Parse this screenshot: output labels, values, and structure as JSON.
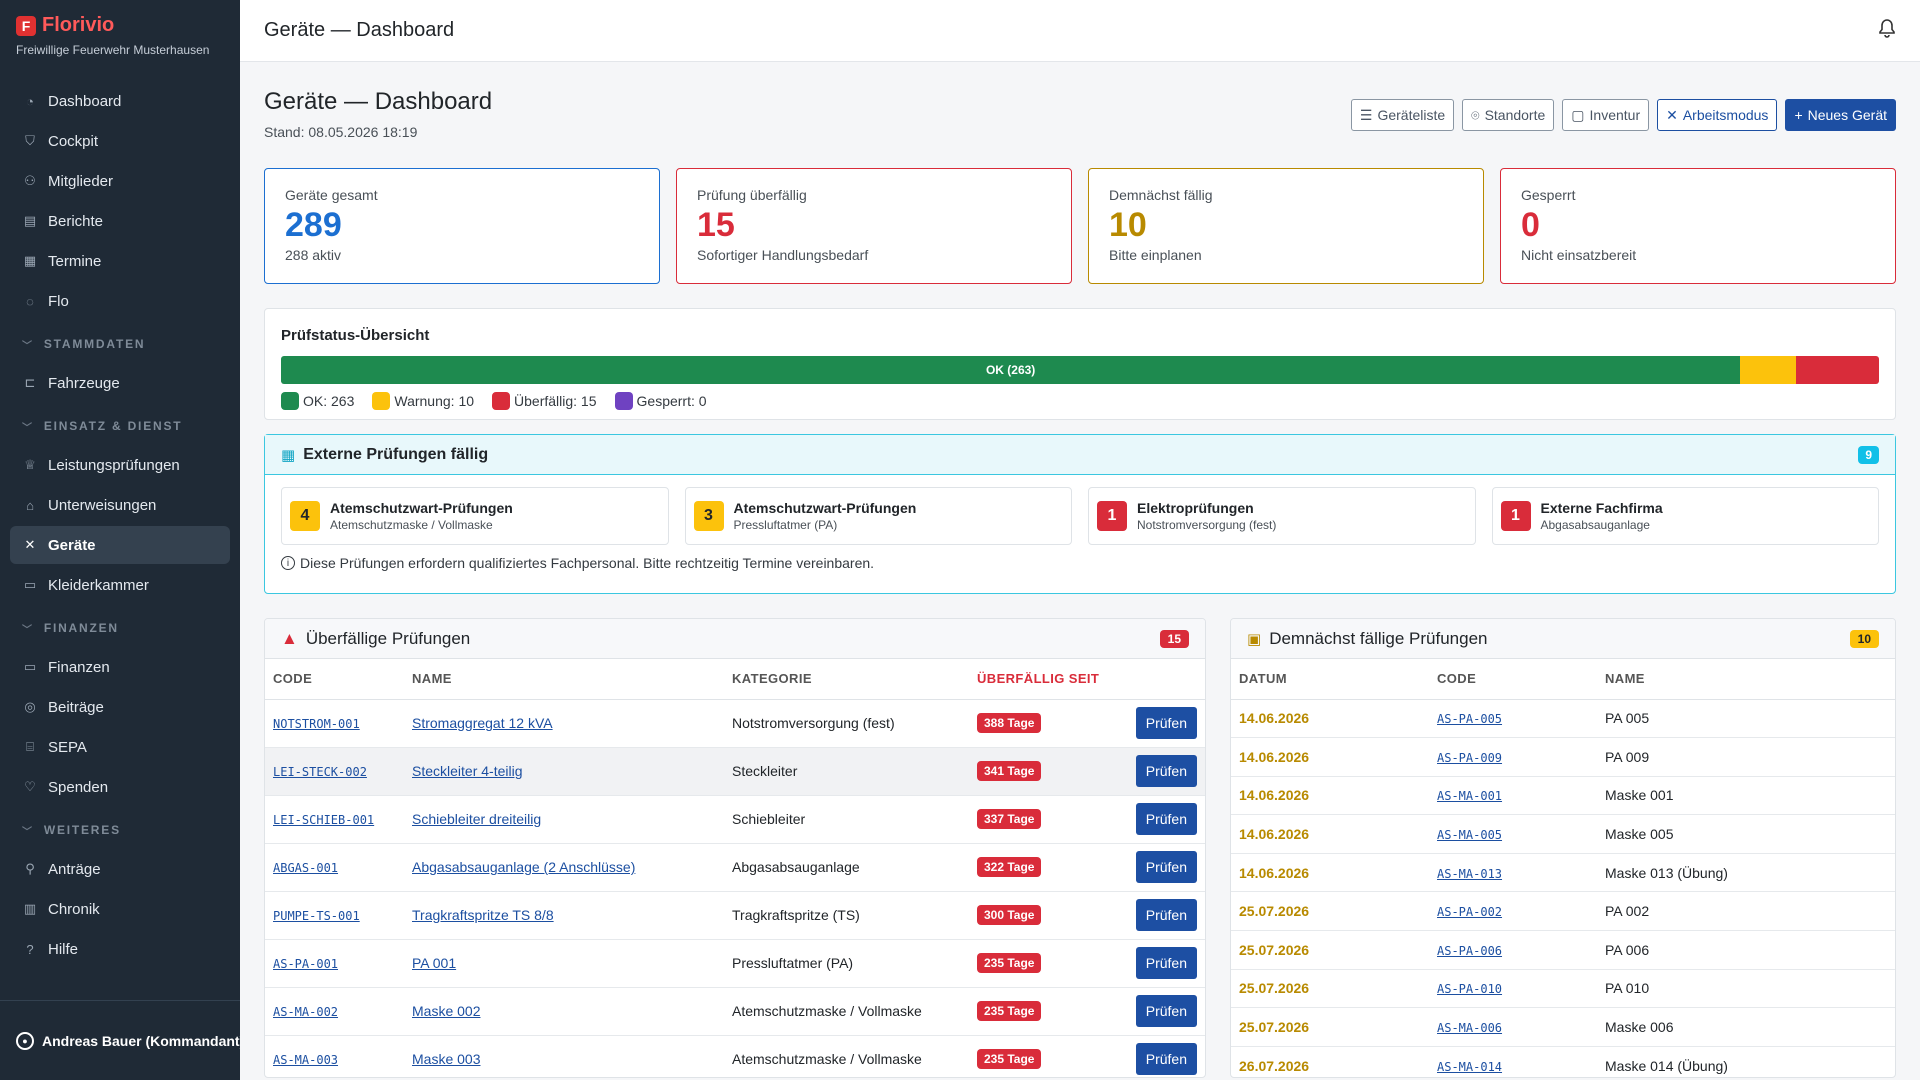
{
  "brand": {
    "name": "Florivio",
    "logo_letter": "F",
    "subtitle": "Freiwillige Feuerwehr Musterhausen"
  },
  "sidebar": {
    "items_top": [
      {
        "label": "Dashboard",
        "icon": "speedometer-icon"
      },
      {
        "label": "Cockpit",
        "icon": "shield-icon"
      },
      {
        "label": "Mitglieder",
        "icon": "people-icon"
      },
      {
        "label": "Berichte",
        "icon": "document-icon"
      },
      {
        "label": "Termine",
        "icon": "calendar-icon"
      },
      {
        "label": "Flo",
        "icon": "chat-icon"
      }
    ],
    "sections": [
      {
        "title": "STAMMDATEN",
        "items": [
          {
            "label": "Fahrzeuge",
            "icon": "truck-icon"
          }
        ]
      },
      {
        "title": "EINSATZ & DIENST",
        "items": [
          {
            "label": "Leistungsprüfungen",
            "icon": "trophy-icon"
          },
          {
            "label": "Unterweisungen",
            "icon": "mortarboard-icon"
          },
          {
            "label": "Geräte",
            "icon": "tools-icon",
            "active": true
          },
          {
            "label": "Kleiderkammer",
            "icon": "box-icon"
          }
        ]
      },
      {
        "title": "FINANZEN",
        "items": [
          {
            "label": "Finanzen",
            "icon": "wallet-icon"
          },
          {
            "label": "Beiträge",
            "icon": "coins-icon"
          },
          {
            "label": "SEPA",
            "icon": "bank-icon"
          },
          {
            "label": "Spenden",
            "icon": "heart-icon"
          }
        ]
      },
      {
        "title": "WEITERES",
        "items": [
          {
            "label": "Anträge",
            "icon": "person-check-icon"
          },
          {
            "label": "Chronik",
            "icon": "journal-icon"
          },
          {
            "label": "Hilfe",
            "icon": "question-icon"
          }
        ]
      }
    ],
    "user": "Andreas Bauer (Kommandant)"
  },
  "topbar": {
    "title": "Geräte — Dashboard"
  },
  "page": {
    "title": "Geräte — Dashboard",
    "subtitle": "Stand: 08.05.2026 18:19",
    "actions": {
      "list": "Geräteliste",
      "locations": "Standorte",
      "inventory": "Inventur",
      "workmode": "Arbeitsmodus",
      "new": "Neues Gerät"
    }
  },
  "stats": [
    {
      "label": "Geräte gesamt",
      "value": "289",
      "hint": "288 aktiv",
      "color": "#1c6fd1"
    },
    {
      "label": "Prüfung überfällig",
      "value": "15",
      "hint": "Sofortiger Handlungsbedarf",
      "color": "#d92c3a"
    },
    {
      "label": "Demnächst fällig",
      "value": "10",
      "hint": "Bitte einplanen",
      "color": "#b88a00"
    },
    {
      "label": "Gesperrt",
      "value": "0",
      "hint": "Nicht einsatzbereit",
      "color": "#d92c3a"
    }
  ],
  "status": {
    "title": "Prüfstatus-Übersicht",
    "bar_label": "OK (263)",
    "segments": [
      {
        "name": "OK",
        "value": 263,
        "color": "#1e8a4f"
      },
      {
        "name": "Warnung",
        "value": 10,
        "color": "#fcc20c"
      },
      {
        "name": "Überfällig",
        "value": 15,
        "color": "#d92c3a"
      },
      {
        "name": "Gesperrt",
        "value": 0,
        "color": "#6f42c1"
      }
    ],
    "legend": [
      "OK: 263",
      "Warnung: 10",
      "Überfällig: 15",
      "Gesperrt: 0"
    ]
  },
  "external": {
    "title": "Externe Prüfungen fällig",
    "count": "9",
    "cards": [
      {
        "num": "4",
        "title": "Atemschutzwart-Prüfungen",
        "sub": "Atemschutzmaske / Vollmaske",
        "bg": "#fcc20c",
        "fg": "#212529"
      },
      {
        "num": "3",
        "title": "Atemschutzwart-Prüfungen",
        "sub": "Pressluftatmer (PA)",
        "bg": "#fcc20c",
        "fg": "#212529"
      },
      {
        "num": "1",
        "title": "Elektroprüfungen",
        "sub": "Notstromversorgung (fest)",
        "bg": "#d92c3a",
        "fg": "#ffffff"
      },
      {
        "num": "1",
        "title": "Externe Fachfirma",
        "sub": "Abgasabsauganlage",
        "bg": "#d92c3a",
        "fg": "#ffffff"
      }
    ],
    "note": "Diese Prüfungen erfordern qualifiziertes Fachpersonal. Bitte rechtzeitig Termine vereinbaren."
  },
  "overdue": {
    "title": "Überfällige Prüfungen",
    "count": "15",
    "columns": [
      "CODE",
      "NAME",
      "KATEGORIE",
      "ÜBERFÄLLIG SEIT"
    ],
    "button": "Prüfen",
    "rows": [
      {
        "code": "NOTSTROM-001",
        "name": "Stromaggregat 12 kVA",
        "category": "Notstromversorgung (fest)",
        "days": "388 Tage"
      },
      {
        "code": "LEI-STECK-002",
        "name": "Steckleiter 4-teilig",
        "category": "Steckleiter",
        "days": "341 Tage"
      },
      {
        "code": "LEI-SCHIEB-001",
        "name": "Schiebleiter dreiteilig",
        "category": "Schiebleiter",
        "days": "337 Tage"
      },
      {
        "code": "ABGAS-001",
        "name": "Abgasabsauganlage (2 Anschlüsse)",
        "category": "Abgasabsauganlage",
        "days": "322 Tage"
      },
      {
        "code": "PUMPE-TS-001",
        "name": "Tragkraftspritze TS 8/8",
        "category": "Tragkraftspritze (TS)",
        "days": "300 Tage"
      },
      {
        "code": "AS-PA-001",
        "name": "PA 001",
        "category": "Pressluftatmer (PA)",
        "days": "235 Tage"
      },
      {
        "code": "AS-MA-002",
        "name": "Maske 002",
        "category": "Atemschutzmaske / Vollmaske",
        "days": "235 Tage"
      },
      {
        "code": "AS-MA-003",
        "name": "Maske 003",
        "category": "Atemschutzmaske / Vollmaske",
        "days": "235 Tage"
      }
    ]
  },
  "upcoming": {
    "title": "Demnächst fällige Prüfungen",
    "count": "10",
    "columns": [
      "DATUM",
      "CODE",
      "NAME"
    ],
    "rows": [
      {
        "date": "14.06.2026",
        "code": "AS-PA-005",
        "name": "PA 005"
      },
      {
        "date": "14.06.2026",
        "code": "AS-PA-009",
        "name": "PA 009"
      },
      {
        "date": "14.06.2026",
        "code": "AS-MA-001",
        "name": "Maske 001"
      },
      {
        "date": "14.06.2026",
        "code": "AS-MA-005",
        "name": "Maske 005"
      },
      {
        "date": "14.06.2026",
        "code": "AS-MA-013",
        "name": "Maske 013 (Übung)"
      },
      {
        "date": "25.07.2026",
        "code": "AS-PA-002",
        "name": "PA 002"
      },
      {
        "date": "25.07.2026",
        "code": "AS-PA-006",
        "name": "PA 006"
      },
      {
        "date": "25.07.2026",
        "code": "AS-PA-010",
        "name": "PA 010"
      },
      {
        "date": "25.07.2026",
        "code": "AS-MA-006",
        "name": "Maske 006"
      },
      {
        "date": "26.07.2026",
        "code": "AS-MA-014",
        "name": "Maske 014 (Übung)"
      }
    ]
  }
}
